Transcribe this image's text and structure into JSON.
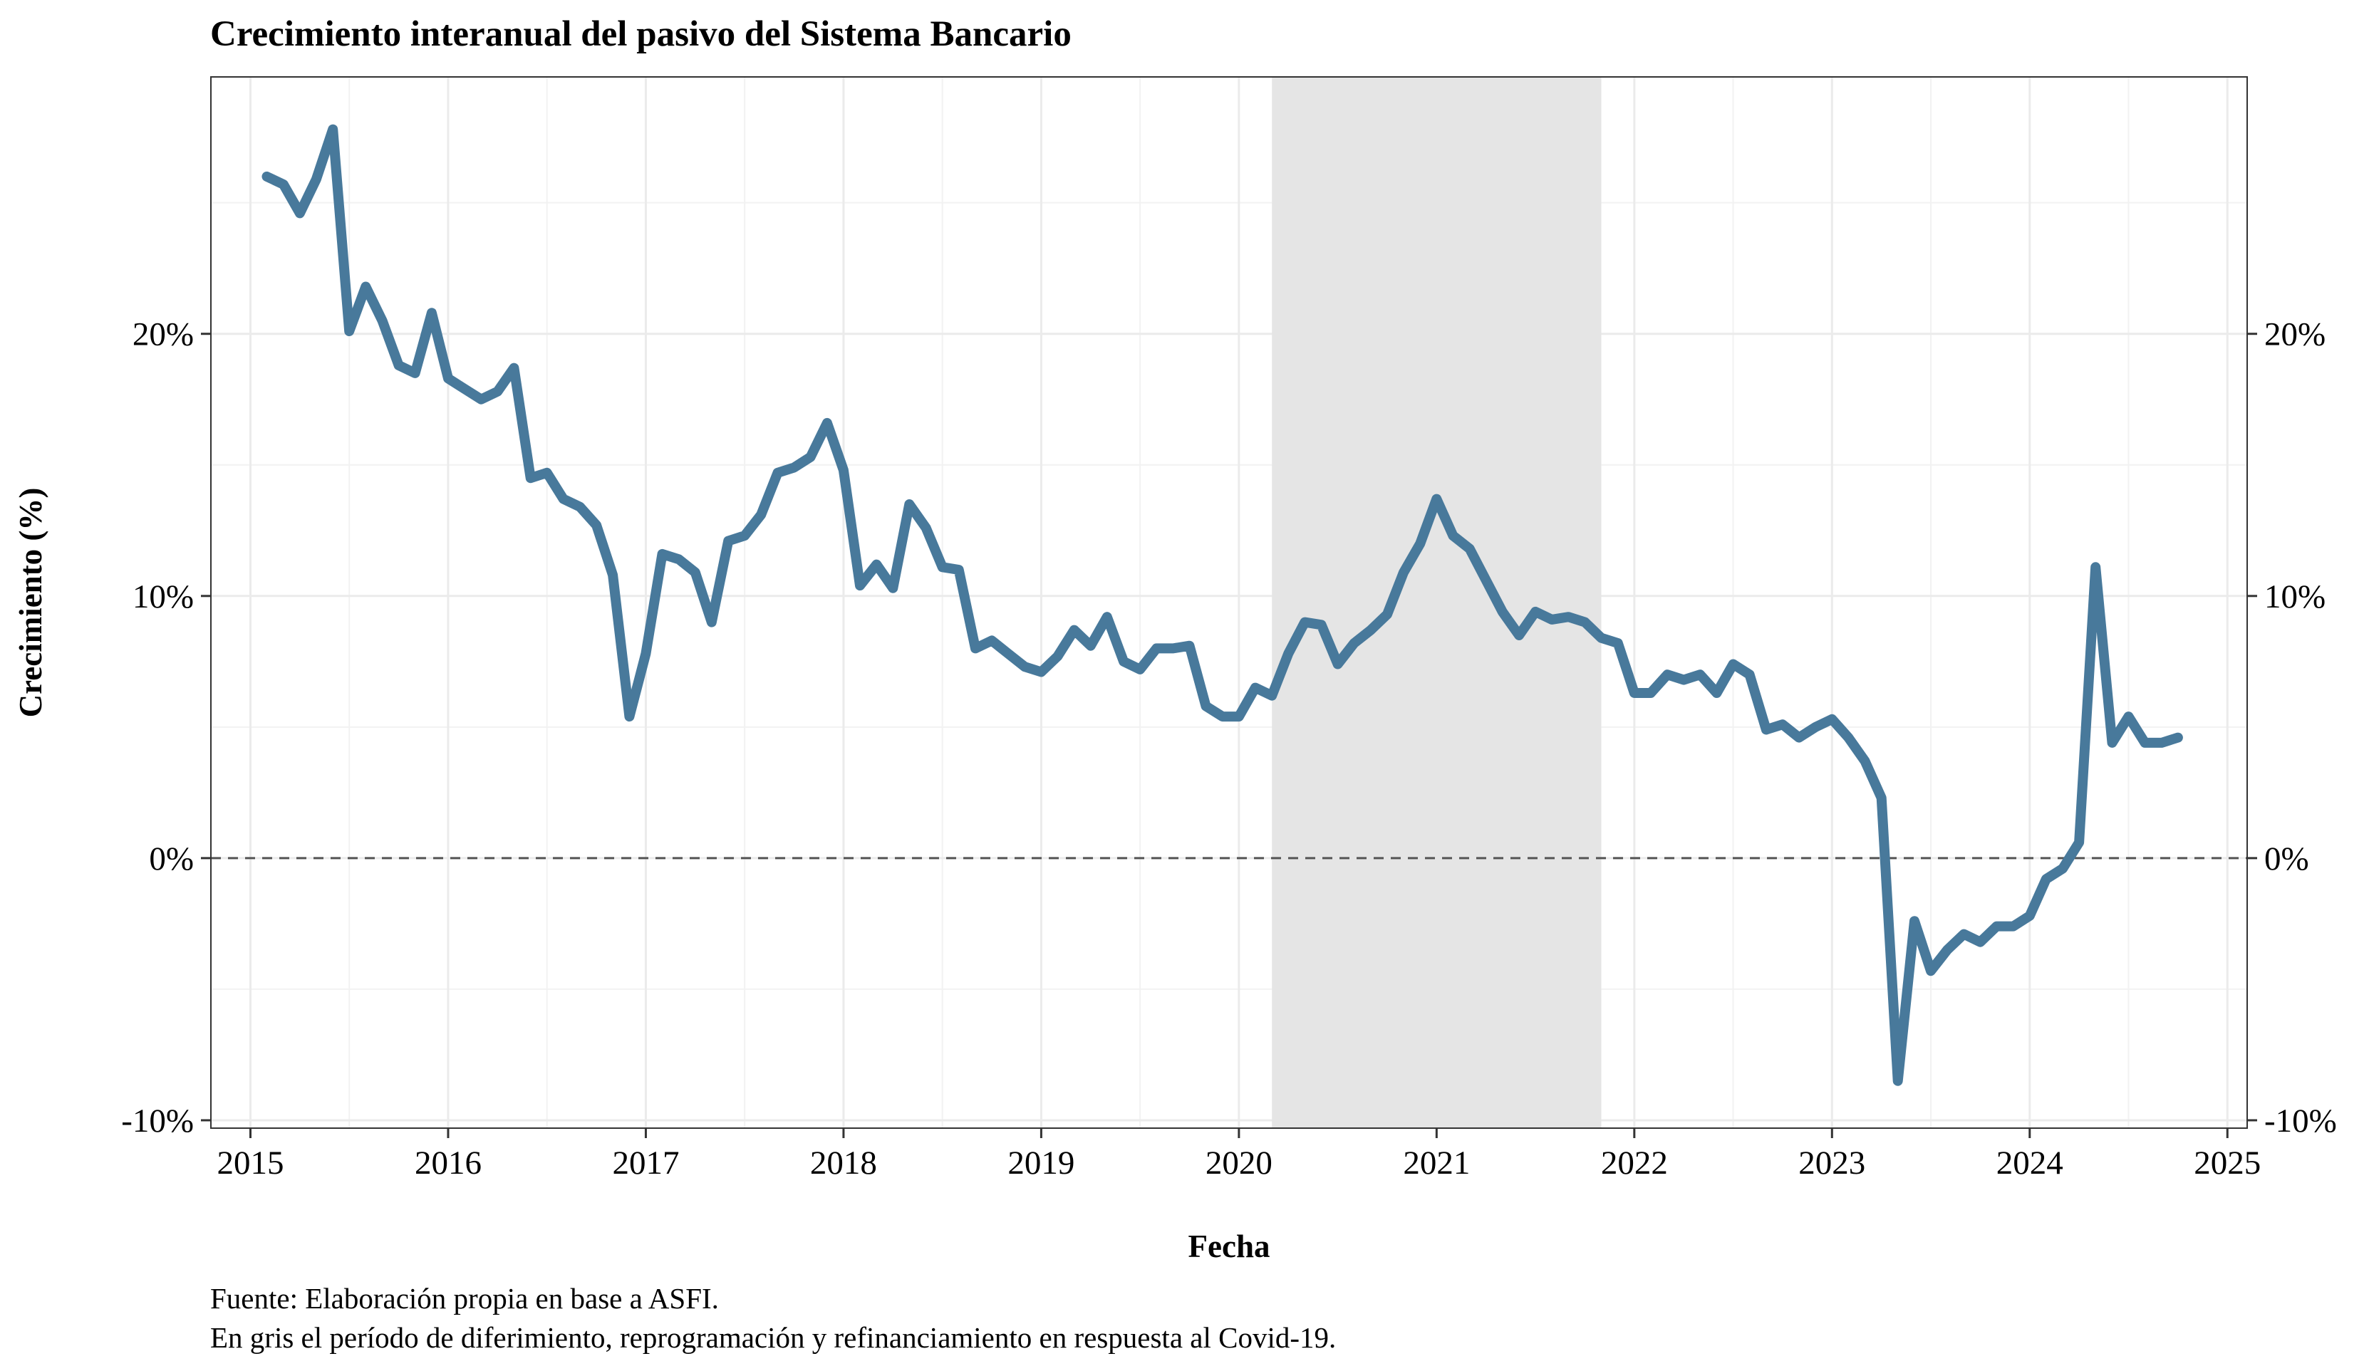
{
  "chart_data": {
    "type": "line",
    "title": "Crecimiento interanual del pasivo del Sistema Bancario",
    "xlabel": "Fecha",
    "ylabel": "Crecimiento (%)",
    "xlim": [
      2014.8,
      2025.1
    ],
    "ylim": [
      -10.3,
      29.8
    ],
    "x_ticks": [
      2015,
      2016,
      2017,
      2018,
      2019,
      2020,
      2021,
      2022,
      2023,
      2024,
      2025
    ],
    "y_ticks": [
      -10,
      0,
      10,
      20
    ],
    "y_tick_labels": [
      "-10%",
      "0%",
      "10%",
      "20%"
    ],
    "grid": true,
    "secondary_y_axis": true,
    "reference_line": {
      "y": 0,
      "style": "dashed"
    },
    "shaded_period": {
      "x_start": 2020.167,
      "x_end": 2021.833,
      "color": "#e5e5e5"
    },
    "line_color": "#48799b",
    "series": [
      {
        "points": [
          [
            2015.083,
            26.0
          ],
          [
            2015.167,
            25.7
          ],
          [
            2015.25,
            24.6
          ],
          [
            2015.333,
            25.9
          ],
          [
            2015.417,
            27.8
          ],
          [
            2015.5,
            20.1
          ],
          [
            2015.583,
            21.8
          ],
          [
            2015.667,
            20.5
          ],
          [
            2015.75,
            18.8
          ],
          [
            2015.833,
            18.5
          ],
          [
            2015.917,
            20.8
          ],
          [
            2016.0,
            18.3
          ],
          [
            2016.083,
            17.9
          ],
          [
            2016.167,
            17.5
          ],
          [
            2016.25,
            17.8
          ],
          [
            2016.333,
            18.7
          ],
          [
            2016.417,
            14.5
          ],
          [
            2016.5,
            14.7
          ],
          [
            2016.583,
            13.7
          ],
          [
            2016.667,
            13.4
          ],
          [
            2016.75,
            12.7
          ],
          [
            2016.833,
            10.8
          ],
          [
            2016.917,
            5.4
          ],
          [
            2017.0,
            7.8
          ],
          [
            2017.083,
            11.6
          ],
          [
            2017.167,
            11.4
          ],
          [
            2017.25,
            10.9
          ],
          [
            2017.333,
            9.0
          ],
          [
            2017.417,
            12.1
          ],
          [
            2017.5,
            12.3
          ],
          [
            2017.583,
            13.1
          ],
          [
            2017.667,
            14.7
          ],
          [
            2017.75,
            14.9
          ],
          [
            2017.833,
            15.3
          ],
          [
            2017.917,
            16.6
          ],
          [
            2018.0,
            14.8
          ],
          [
            2018.083,
            10.4
          ],
          [
            2018.167,
            11.2
          ],
          [
            2018.25,
            10.3
          ],
          [
            2018.333,
            13.5
          ],
          [
            2018.417,
            12.6
          ],
          [
            2018.5,
            11.1
          ],
          [
            2018.583,
            11.0
          ],
          [
            2018.667,
            8.0
          ],
          [
            2018.75,
            8.3
          ],
          [
            2018.833,
            7.8
          ],
          [
            2018.917,
            7.3
          ],
          [
            2019.0,
            7.1
          ],
          [
            2019.083,
            7.7
          ],
          [
            2019.167,
            8.7
          ],
          [
            2019.25,
            8.1
          ],
          [
            2019.333,
            9.2
          ],
          [
            2019.417,
            7.5
          ],
          [
            2019.5,
            7.2
          ],
          [
            2019.583,
            8.0
          ],
          [
            2019.667,
            8.0
          ],
          [
            2019.75,
            8.1
          ],
          [
            2019.833,
            5.8
          ],
          [
            2019.917,
            5.4
          ],
          [
            2020.0,
            5.4
          ],
          [
            2020.083,
            6.5
          ],
          [
            2020.167,
            6.2
          ],
          [
            2020.25,
            7.8
          ],
          [
            2020.333,
            9.0
          ],
          [
            2020.417,
            8.9
          ],
          [
            2020.5,
            7.4
          ],
          [
            2020.583,
            8.2
          ],
          [
            2020.667,
            8.7
          ],
          [
            2020.75,
            9.3
          ],
          [
            2020.833,
            10.9
          ],
          [
            2020.917,
            12.0
          ],
          [
            2021.0,
            13.7
          ],
          [
            2021.083,
            12.3
          ],
          [
            2021.167,
            11.8
          ],
          [
            2021.25,
            10.6
          ],
          [
            2021.333,
            9.4
          ],
          [
            2021.417,
            8.5
          ],
          [
            2021.5,
            9.4
          ],
          [
            2021.583,
            9.1
          ],
          [
            2021.667,
            9.2
          ],
          [
            2021.75,
            9.0
          ],
          [
            2021.833,
            8.4
          ],
          [
            2021.917,
            8.2
          ],
          [
            2022.0,
            6.3
          ],
          [
            2022.083,
            6.3
          ],
          [
            2022.167,
            7.0
          ],
          [
            2022.25,
            6.8
          ],
          [
            2022.333,
            7.0
          ],
          [
            2022.417,
            6.3
          ],
          [
            2022.5,
            7.4
          ],
          [
            2022.583,
            7.0
          ],
          [
            2022.667,
            4.9
          ],
          [
            2022.75,
            5.1
          ],
          [
            2022.833,
            4.6
          ],
          [
            2022.917,
            5.0
          ],
          [
            2023.0,
            5.3
          ],
          [
            2023.083,
            4.6
          ],
          [
            2023.167,
            3.7
          ],
          [
            2023.25,
            2.3
          ],
          [
            2023.333,
            -8.5
          ],
          [
            2023.417,
            -2.4
          ],
          [
            2023.5,
            -4.3
          ],
          [
            2023.583,
            -3.5
          ],
          [
            2023.667,
            -2.9
          ],
          [
            2023.75,
            -3.2
          ],
          [
            2023.833,
            -2.6
          ],
          [
            2023.917,
            -2.6
          ],
          [
            2024.0,
            -2.2
          ],
          [
            2024.083,
            -0.8
          ],
          [
            2024.167,
            -0.4
          ],
          [
            2024.25,
            0.6
          ],
          [
            2024.333,
            11.1
          ],
          [
            2024.417,
            4.4
          ],
          [
            2024.5,
            5.4
          ],
          [
            2024.583,
            4.4
          ],
          [
            2024.667,
            4.4
          ],
          [
            2024.75,
            4.6
          ]
        ]
      }
    ],
    "caption_lines": [
      "Fuente: Elaboración propia en base a ASFI.",
      "En gris el período de diferimiento, reprogramación y refinanciamiento en respuesta al Covid-19."
    ]
  }
}
